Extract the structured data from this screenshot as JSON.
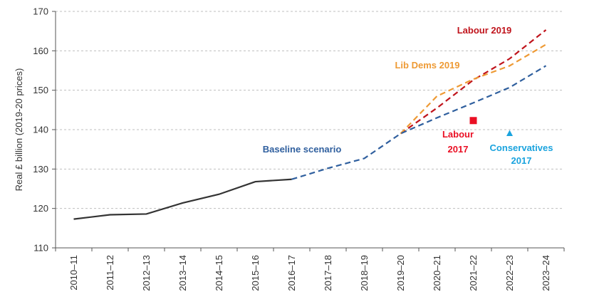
{
  "chart_data": {
    "type": "line",
    "ylabel": "Real £ billion (2019-20 prices)",
    "ylim": [
      110,
      170
    ],
    "yticks": [
      110,
      120,
      130,
      140,
      150,
      160,
      170
    ],
    "grid": "horizontal dashed",
    "categories": [
      "2010–11",
      "2011–12",
      "2012–13",
      "2013–14",
      "2014–15",
      "2015–16",
      "2016–17",
      "2017–18",
      "2018–19",
      "2019–20",
      "2020–21",
      "2021–22",
      "2022–23",
      "2023–24"
    ],
    "series": [
      {
        "name": "Baseline scenario",
        "color": "#2f5f9e",
        "style": "solid-then-dashed",
        "dash_from_index": 6,
        "values": [
          117.3,
          118.4,
          118.6,
          121.4,
          123.6,
          126.8,
          127.4,
          130.2,
          132.7,
          139.0,
          143.0,
          146.8,
          150.7,
          156.2
        ]
      },
      {
        "name": "Labour 2019",
        "color": "#c0141c",
        "style": "dashed",
        "start_index": 9,
        "values": [
          null,
          null,
          null,
          null,
          null,
          null,
          null,
          null,
          null,
          139.0,
          145.5,
          152.6,
          158.0,
          165.3
        ]
      },
      {
        "name": "Lib Dems 2019",
        "color": "#ee9a34",
        "style": "dashed",
        "start_index": 9,
        "values": [
          null,
          null,
          null,
          null,
          null,
          null,
          null,
          null,
          null,
          139.0,
          148.5,
          152.8,
          156.2,
          161.6
        ]
      }
    ],
    "points": [
      {
        "name": "Labour 2017",
        "label_lines": [
          "Labour",
          "2017"
        ],
        "x_index": 11,
        "y": 142.3,
        "marker": "square",
        "color": "#ea0f24"
      },
      {
        "name": "Conservatives 2017",
        "label_lines": [
          "Conservatives",
          "2017"
        ],
        "x_index": 12,
        "y": 139.0,
        "marker": "triangle",
        "color": "#1aa3de"
      }
    ],
    "annotations": [
      {
        "text": "Labour 2019",
        "color": "#c0141c"
      },
      {
        "text": "Lib Dems 2019",
        "color": "#ee9a34"
      },
      {
        "text": "Baseline scenario",
        "color": "#2f5f9e"
      }
    ]
  }
}
